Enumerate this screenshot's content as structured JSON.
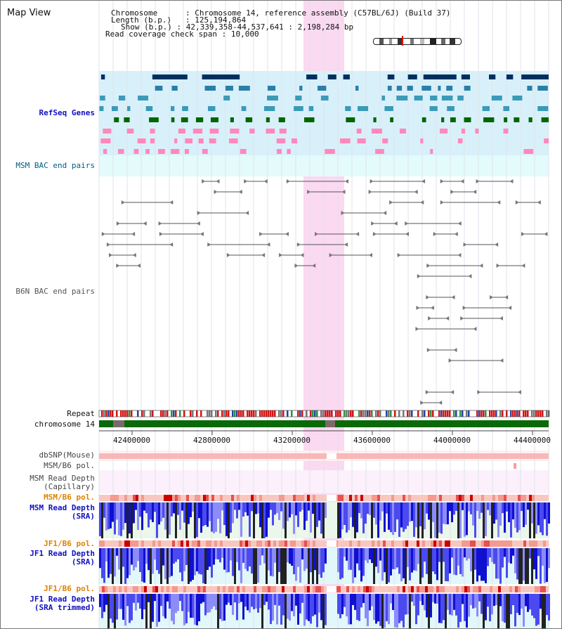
{
  "title": "Map View",
  "info": {
    "chromosome_label": "Chromosome",
    "chromosome_value": "Chromosome 14, reference assembly (C57BL/6J) (Build 37)",
    "length_label": "Length (b.p.)",
    "length_value": "125,194,864",
    "show_label": "Show (b.p.)",
    "show_value": "42,339,358-44,537,641 : 2,198,284 bp",
    "read_span_label": "Read coverage check span",
    "read_span_value": "10,000"
  },
  "tracks": {
    "refseq_genes": "RefSeq Genes",
    "msm_bac": "MSM BAC end pairs",
    "b6n_bac": "B6N BAC end pairs",
    "repeat": "Repeat",
    "chromosome": "chromosome 14",
    "dbsnp": "dbSNP(Mouse)",
    "msm_b6_pol": "MSM/B6 pol.",
    "msm_read_depth_cap_1": "MSM Read Depth",
    "msm_read_depth_cap_2": "(Capillary)",
    "msm_b6_pol_2": "MSM/B6 pol.",
    "msm_read_depth_sra_1": "MSM Read Depth",
    "msm_read_depth_sra_2": "(SRA)",
    "jf1_b6_pol": "JF1/B6 pol.",
    "jf1_read_depth_sra_1": "JF1 Read Depth",
    "jf1_read_depth_sra_2": "(SRA)",
    "jf1_b6_pol_2": "JF1/B6 pol.",
    "jf1_read_depth_trim_1": "JF1 Read Depth",
    "jf1_read_depth_trim_2": "(SRA trimmed)"
  },
  "axis_ticks": [
    "42400000",
    "42800000",
    "43200000",
    "43600000",
    "44000000",
    "44400000"
  ],
  "colors": {
    "label_blue": "#1010c0",
    "label_teal": "#006080",
    "label_orange": "#e08000",
    "gene_dark": "#003060",
    "gene_mid": "#2090b0",
    "gene_green": "#006600",
    "gene_pink": "#ff88bb",
    "highlight": "#f5aae1"
  }
}
